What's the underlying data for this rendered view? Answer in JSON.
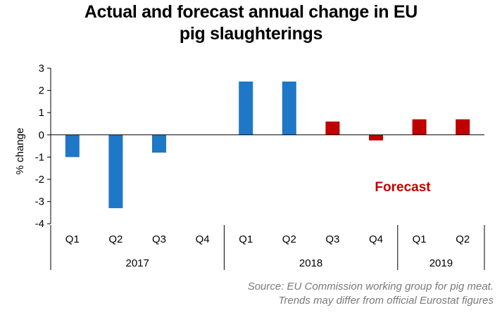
{
  "title_line1": "Actual and forecast annual change in EU",
  "title_line2": "pig slaughterings",
  "annotation": "Forecast",
  "source_line1": "Source: EU Commission working group for pig meat.",
  "source_line2": "Trends may differ from official Eurostat figures",
  "colors": {
    "actual": "#1f77c8",
    "forecast": "#c00000",
    "annotation": "#c00000"
  },
  "chart_data": {
    "type": "bar",
    "title": "Actual and forecast annual change in EU pig slaughterings",
    "ylabel": "% change",
    "xlabel": "",
    "ylim": [
      -4,
      3
    ],
    "yticks": [
      3,
      2,
      1,
      0,
      -1,
      -2,
      -3,
      -4
    ],
    "categories": [
      "Q1",
      "Q2",
      "Q3",
      "Q4",
      "Q1",
      "Q2",
      "Q3",
      "Q4",
      "Q1",
      "Q2"
    ],
    "groups": [
      {
        "label": "2017",
        "count": 4
      },
      {
        "label": "2018",
        "count": 4
      },
      {
        "label": "2019",
        "count": 2
      }
    ],
    "values": [
      -1.0,
      -3.3,
      -0.8,
      0.0,
      2.4,
      2.4,
      0.6,
      -0.25,
      0.7,
      0.7
    ],
    "kind": [
      "actual",
      "actual",
      "actual",
      "actual",
      "actual",
      "actual",
      "forecast",
      "forecast",
      "forecast",
      "forecast"
    ],
    "grid": false,
    "legend": "none"
  }
}
